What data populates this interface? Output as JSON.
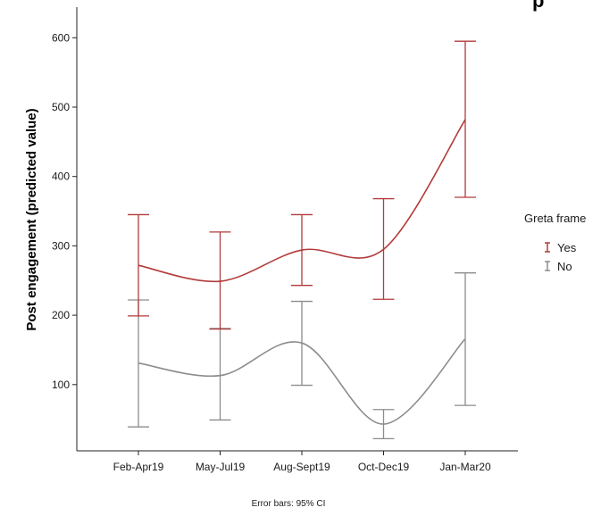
{
  "chart_data": {
    "type": "line",
    "categories": [
      "Feb-Apr19",
      "May-Jul19",
      "Aug-Sept19",
      "Oct-Dec19",
      "Jan-Mar20"
    ],
    "ylabel": "Post engagement (predicted value)",
    "xlabel": "",
    "ylim": [
      0,
      640
    ],
    "yticks": [
      100,
      200,
      300,
      400,
      500,
      600
    ],
    "legend": {
      "title": "Greta frame",
      "position": "right"
    },
    "series": [
      {
        "name": "Yes",
        "color": "#b33a3a",
        "values": [
          272,
          249,
          294,
          295,
          482
        ],
        "ci_low": [
          199,
          180,
          243,
          223,
          370
        ],
        "ci_high": [
          345,
          320,
          345,
          368,
          595
        ]
      },
      {
        "name": "No",
        "color": "#8c8c8c",
        "values": [
          131,
          113,
          160,
          43,
          166
        ],
        "ci_low": [
          39,
          49,
          99,
          22,
          70
        ],
        "ci_high": [
          222,
          181,
          220,
          64,
          261
        ]
      }
    ],
    "note": "Error bars: 95% CI",
    "grid": false
  },
  "header_fragment": "p"
}
